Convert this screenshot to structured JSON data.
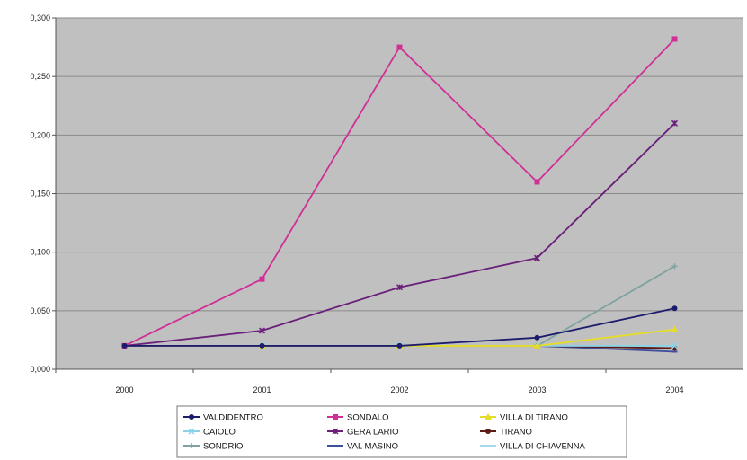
{
  "chart_data": {
    "type": "line",
    "title": "",
    "xlabel": "",
    "ylabel": "",
    "categories": [
      "2000",
      "2001",
      "2002",
      "2003",
      "2004"
    ],
    "ylim": [
      0,
      0.3
    ],
    "yticks": [
      "0,000",
      "0,050",
      "0,100",
      "0,150",
      "0,200",
      "0,250",
      "0,300"
    ],
    "grid": true,
    "legend_position": "bottom",
    "plot_background": "#c0c0c0",
    "series": [
      {
        "name": "VALDIDENTRO",
        "color": "#1c1c6e",
        "marker": "circle",
        "values": [
          0.02,
          0.02,
          0.02,
          0.027,
          0.052
        ]
      },
      {
        "name": "SONDALO",
        "color": "#d02f96",
        "marker": "square",
        "values": [
          0.02,
          0.077,
          0.275,
          0.16,
          0.282
        ]
      },
      {
        "name": "VILLA DI TIRANO",
        "color": "#e6dc2a",
        "marker": "triangle",
        "values": [
          0.02,
          0.02,
          0.02,
          0.02,
          0.034
        ]
      },
      {
        "name": "CAIOLO",
        "color": "#8ad2e6",
        "marker": "x",
        "values": [
          0.02,
          0.02,
          0.02,
          0.02,
          0.02
        ]
      },
      {
        "name": "GERA LARIO",
        "color": "#6a1f7a",
        "marker": "star",
        "values": [
          0.02,
          0.033,
          0.07,
          0.095,
          0.21
        ]
      },
      {
        "name": "TIRANO",
        "color": "#5c1a14",
        "marker": "circle",
        "values": [
          0.02,
          0.02,
          0.02,
          0.02,
          0.018
        ]
      },
      {
        "name": "SONDRIO",
        "color": "#7fa3a0",
        "marker": "plus",
        "values": [
          0.02,
          0.02,
          0.02,
          0.02,
          0.088
        ]
      },
      {
        "name": "VAL MASINO",
        "color": "#3e4fa0",
        "marker": "dash",
        "values": [
          0.02,
          0.02,
          0.02,
          0.02,
          0.015
        ]
      },
      {
        "name": "VILLA DI CHIAVENNA",
        "color": "#a8d8ec",
        "marker": "dash",
        "values": [
          0.02,
          0.02,
          0.02,
          0.02,
          0.02
        ]
      }
    ]
  }
}
